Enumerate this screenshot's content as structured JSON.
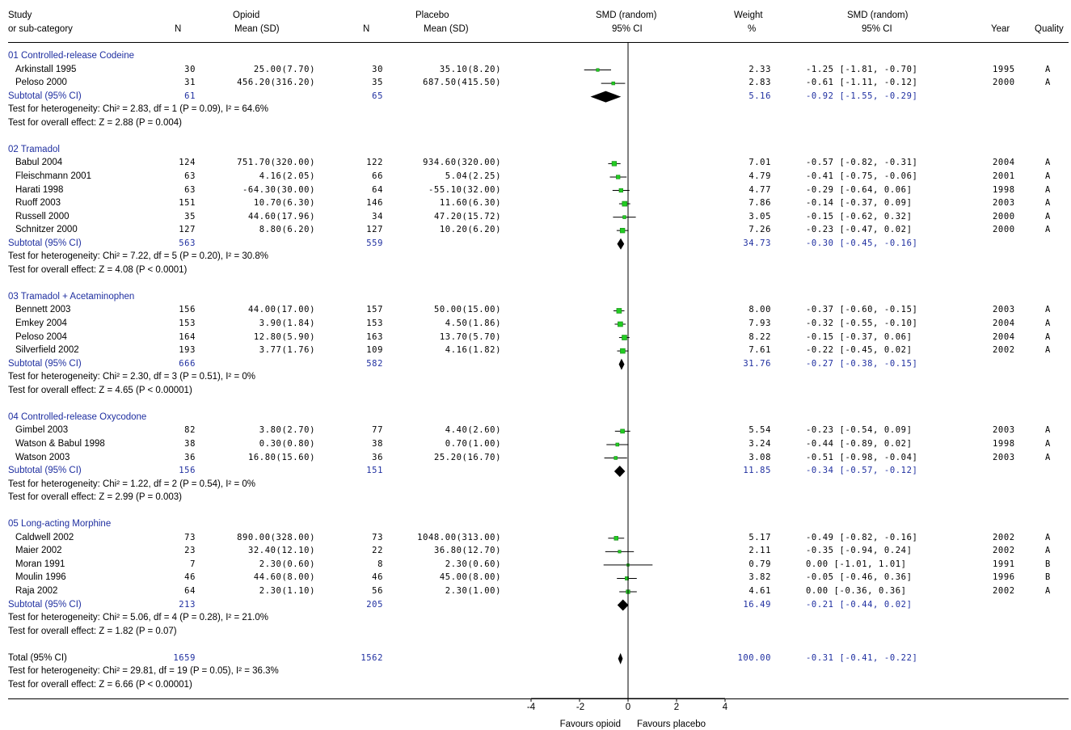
{
  "header": {
    "study": "Study",
    "subcat": "or sub-category",
    "n": "N",
    "opioid": "Opioid",
    "mean_sd": "Mean (SD)",
    "placebo": "Placebo",
    "smd": "SMD (random)",
    "ci": "95% CI",
    "weight": "Weight",
    "pct": "%",
    "year": "Year",
    "quality": "Quality"
  },
  "chart_data": {
    "type": "forest",
    "effect_measure": "SMD (random)",
    "xlim": [
      -4,
      4
    ],
    "xticks": [
      "-4",
      "-2",
      "0",
      "2",
      "4"
    ],
    "xlabel_left": "Favours opioid",
    "xlabel_right": "Favours placebo",
    "groups": [
      {
        "name": "01 Controlled-release Codeine",
        "studies": [
          {
            "study": "Arkinstall 1995",
            "n1": "30",
            "m1": "25.00(7.70)",
            "n2": "30",
            "m2": "35.10(8.20)",
            "weight": "2.33",
            "smd_text": "-1.25 [-1.81, -0.70]",
            "smd": -1.25,
            "lo": -1.81,
            "hi": -0.7,
            "year": "1995",
            "quality": "A"
          },
          {
            "study": "Peloso 2000",
            "n1": "31",
            "m1": "456.20(316.20)",
            "n2": "35",
            "m2": "687.50(415.50)",
            "weight": "2.83",
            "smd_text": "-0.61 [-1.11, -0.12]",
            "smd": -0.61,
            "lo": -1.11,
            "hi": -0.12,
            "year": "2000",
            "quality": "A"
          }
        ],
        "subtotal": {
          "label": "Subtotal (95% CI)",
          "n1": "61",
          "n2": "65",
          "weight": "5.16",
          "smd_text": "-0.92 [-1.55, -0.29]",
          "smd": -0.92,
          "lo": -1.55,
          "hi": -0.29
        },
        "heterogeneity": "Test for heterogeneity: Chi² = 2.83, df = 1 (P = 0.09), I² = 64.6%",
        "overall": "Test for overall effect: Z = 2.88 (P = 0.004)"
      },
      {
        "name": "02 Tramadol",
        "studies": [
          {
            "study": "Babul 2004",
            "n1": "124",
            "m1": "751.70(320.00)",
            "n2": "122",
            "m2": "934.60(320.00)",
            "weight": "7.01",
            "smd_text": "-0.57 [-0.82, -0.31]",
            "smd": -0.57,
            "lo": -0.82,
            "hi": -0.31,
            "year": "2004",
            "quality": "A"
          },
          {
            "study": "Fleischmann 2001",
            "n1": "63",
            "m1": "4.16(2.05)",
            "n2": "66",
            "m2": "5.04(2.25)",
            "weight": "4.79",
            "smd_text": "-0.41 [-0.75, -0.06]",
            "smd": -0.41,
            "lo": -0.75,
            "hi": -0.06,
            "year": "2001",
            "quality": "A"
          },
          {
            "study": "Harati 1998",
            "n1": "63",
            "m1": "-64.30(30.00)",
            "n2": "64",
            "m2": "-55.10(32.00)",
            "weight": "4.77",
            "smd_text": "-0.29 [-0.64, 0.06]",
            "smd": -0.29,
            "lo": -0.64,
            "hi": 0.06,
            "year": "1998",
            "quality": "A"
          },
          {
            "study": "Ruoff 2003",
            "n1": "151",
            "m1": "10.70(6.30)",
            "n2": "146",
            "m2": "11.60(6.30)",
            "weight": "7.86",
            "smd_text": "-0.14 [-0.37, 0.09]",
            "smd": -0.14,
            "lo": -0.37,
            "hi": 0.09,
            "year": "2003",
            "quality": "A"
          },
          {
            "study": "Russell 2000",
            "n1": "35",
            "m1": "44.60(17.96)",
            "n2": "34",
            "m2": "47.20(15.72)",
            "weight": "3.05",
            "smd_text": "-0.15 [-0.62, 0.32]",
            "smd": -0.15,
            "lo": -0.62,
            "hi": 0.32,
            "year": "2000",
            "quality": "A"
          },
          {
            "study": "Schnitzer 2000",
            "n1": "127",
            "m1": "8.80(6.20)",
            "n2": "127",
            "m2": "10.20(6.20)",
            "weight": "7.26",
            "smd_text": "-0.23 [-0.47, 0.02]",
            "smd": -0.23,
            "lo": -0.47,
            "hi": 0.02,
            "year": "2000",
            "quality": "A"
          }
        ],
        "subtotal": {
          "label": "Subtotal (95% CI)",
          "n1": "563",
          "n2": "559",
          "weight": "34.73",
          "smd_text": "-0.30 [-0.45, -0.16]",
          "smd": -0.3,
          "lo": -0.45,
          "hi": -0.16
        },
        "heterogeneity": "Test for heterogeneity: Chi² = 7.22, df = 5 (P = 0.20), I² = 30.8%",
        "overall": "Test for overall effect: Z = 4.08 (P < 0.0001)"
      },
      {
        "name": "03 Tramadol + Acetaminophen",
        "studies": [
          {
            "study": "Bennett 2003",
            "n1": "156",
            "m1": "44.00(17.00)",
            "n2": "157",
            "m2": "50.00(15.00)",
            "weight": "8.00",
            "smd_text": "-0.37 [-0.60, -0.15]",
            "smd": -0.37,
            "lo": -0.6,
            "hi": -0.15,
            "year": "2003",
            "quality": "A"
          },
          {
            "study": "Emkey 2004",
            "n1": "153",
            "m1": "3.90(1.84)",
            "n2": "153",
            "m2": "4.50(1.86)",
            "weight": "7.93",
            "smd_text": "-0.32 [-0.55, -0.10]",
            "smd": -0.32,
            "lo": -0.55,
            "hi": -0.1,
            "year": "2004",
            "quality": "A"
          },
          {
            "study": "Peloso 2004",
            "n1": "164",
            "m1": "12.80(5.90)",
            "n2": "163",
            "m2": "13.70(5.70)",
            "weight": "8.22",
            "smd_text": "-0.15 [-0.37, 0.06]",
            "smd": -0.15,
            "lo": -0.37,
            "hi": 0.06,
            "year": "2004",
            "quality": "A"
          },
          {
            "study": "Silverfield 2002",
            "n1": "193",
            "m1": "3.77(1.76)",
            "n2": "109",
            "m2": "4.16(1.82)",
            "weight": "7.61",
            "smd_text": "-0.22 [-0.45, 0.02]",
            "smd": -0.22,
            "lo": -0.45,
            "hi": 0.02,
            "year": "2002",
            "quality": "A"
          }
        ],
        "subtotal": {
          "label": "Subtotal (95% CI)",
          "n1": "666",
          "n2": "582",
          "weight": "31.76",
          "smd_text": "-0.27 [-0.38, -0.15]",
          "smd": -0.27,
          "lo": -0.38,
          "hi": -0.15
        },
        "heterogeneity": "Test for heterogeneity: Chi² = 2.30, df = 3 (P = 0.51), I² = 0%",
        "overall": "Test for overall effect: Z = 4.65 (P < 0.00001)"
      },
      {
        "name": "04 Controlled-release Oxycodone",
        "studies": [
          {
            "study": "Gimbel 2003",
            "n1": "82",
            "m1": "3.80(2.70)",
            "n2": "77",
            "m2": "4.40(2.60)",
            "weight": "5.54",
            "smd_text": "-0.23 [-0.54, 0.09]",
            "smd": -0.23,
            "lo": -0.54,
            "hi": 0.09,
            "year": "2003",
            "quality": "A"
          },
          {
            "study": "Watson & Babul 1998",
            "n1": "38",
            "m1": "0.30(0.80)",
            "n2": "38",
            "m2": "0.70(1.00)",
            "weight": "3.24",
            "smd_text": "-0.44 [-0.89, 0.02]",
            "smd": -0.44,
            "lo": -0.89,
            "hi": 0.02,
            "year": "1998",
            "quality": "A"
          },
          {
            "study": "Watson 2003",
            "n1": "36",
            "m1": "16.80(15.60)",
            "n2": "36",
            "m2": "25.20(16.70)",
            "weight": "3.08",
            "smd_text": "-0.51 [-0.98, -0.04]",
            "smd": -0.51,
            "lo": -0.98,
            "hi": -0.04,
            "year": "2003",
            "quality": "A"
          }
        ],
        "subtotal": {
          "label": "Subtotal (95% CI)",
          "n1": "156",
          "n2": "151",
          "weight": "11.85",
          "smd_text": "-0.34 [-0.57, -0.12]",
          "smd": -0.34,
          "lo": -0.57,
          "hi": -0.12
        },
        "heterogeneity": "Test for heterogeneity: Chi² = 1.22, df = 2 (P = 0.54), I² = 0%",
        "overall": "Test for overall effect: Z = 2.99 (P = 0.003)"
      },
      {
        "name": "05 Long-acting Morphine",
        "studies": [
          {
            "study": "Caldwell 2002",
            "n1": "73",
            "m1": "890.00(328.00)",
            "n2": "73",
            "m2": "1048.00(313.00)",
            "weight": "5.17",
            "smd_text": "-0.49 [-0.82, -0.16]",
            "smd": -0.49,
            "lo": -0.82,
            "hi": -0.16,
            "year": "2002",
            "quality": "A"
          },
          {
            "study": "Maier 2002",
            "n1": "23",
            "m1": "32.40(12.10)",
            "n2": "22",
            "m2": "36.80(12.70)",
            "weight": "2.11",
            "smd_text": "-0.35 [-0.94, 0.24]",
            "smd": -0.35,
            "lo": -0.94,
            "hi": 0.24,
            "year": "2002",
            "quality": "A"
          },
          {
            "study": "Moran 1991",
            "n1": "7",
            "m1": "2.30(0.60)",
            "n2": "8",
            "m2": "2.30(0.60)",
            "weight": "0.79",
            "smd_text": "0.00 [-1.01, 1.01]",
            "smd": 0.0,
            "lo": -1.01,
            "hi": 1.01,
            "year": "1991",
            "quality": "B"
          },
          {
            "study": "Moulin 1996",
            "n1": "46",
            "m1": "44.60(8.00)",
            "n2": "46",
            "m2": "45.00(8.00)",
            "weight": "3.82",
            "smd_text": "-0.05 [-0.46, 0.36]",
            "smd": -0.05,
            "lo": -0.46,
            "hi": 0.36,
            "year": "1996",
            "quality": "B"
          },
          {
            "study": "Raja 2002",
            "n1": "64",
            "m1": "2.30(1.10)",
            "n2": "56",
            "m2": "2.30(1.00)",
            "weight": "4.61",
            "smd_text": "0.00 [-0.36, 0.36]",
            "smd": 0.0,
            "lo": -0.36,
            "hi": 0.36,
            "year": "2002",
            "quality": "A"
          }
        ],
        "subtotal": {
          "label": "Subtotal (95% CI)",
          "n1": "213",
          "n2": "205",
          "weight": "16.49",
          "smd_text": "-0.21 [-0.44, 0.02]",
          "smd": -0.21,
          "lo": -0.44,
          "hi": 0.02
        },
        "heterogeneity": "Test for heterogeneity: Chi² = 5.06, df = 4 (P = 0.28), I² = 21.0%",
        "overall": "Test for overall effect: Z = 1.82 (P = 0.07)"
      }
    ],
    "total": {
      "label": "Total (95% CI)",
      "n1": "1659",
      "n2": "1562",
      "weight": "100.00",
      "smd_text": "-0.31 [-0.41, -0.22]",
      "smd": -0.31,
      "lo": -0.41,
      "hi": -0.22,
      "heterogeneity": "Test for heterogeneity: Chi² = 29.81, df = 19 (P = 0.05), I² = 36.3%",
      "overall": "Test for overall effect: Z = 6.66 (P < 0.00001)"
    }
  },
  "colors": {
    "text": "#000000",
    "blue": "#1f2fa0",
    "marker": "#22cc22",
    "line": "#000000"
  }
}
